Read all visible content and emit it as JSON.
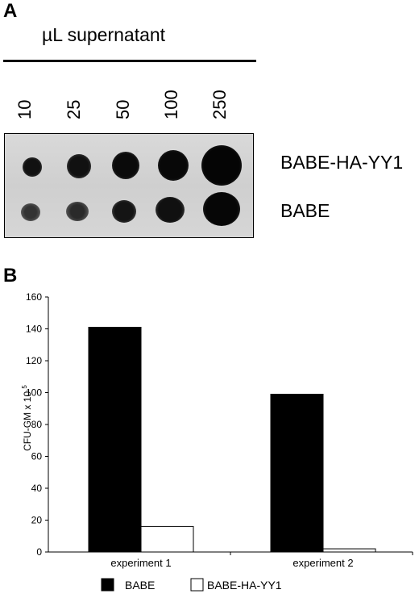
{
  "panelA": {
    "letter": "A",
    "title": "µL supernatant",
    "concentrations": [
      "10",
      "25",
      "50",
      "100",
      "250"
    ],
    "row_labels": [
      "BABE-HA-YY1",
      "BABE"
    ]
  },
  "panelB": {
    "letter": "B",
    "legend": [
      "BABE",
      "BABE-HA-YY1"
    ]
  },
  "chart_data": {
    "type": "bar",
    "categories": [
      "experiment 1",
      "experiment 2"
    ],
    "series": [
      {
        "name": "BABE",
        "values": [
          141,
          99
        ],
        "color": "#000000"
      },
      {
        "name": "BABE-HA-YY1",
        "values": [
          16,
          2
        ],
        "color": "#ffffff"
      }
    ],
    "ylabel": "CFU-GM x 10",
    "ylabel_superscript": "5",
    "ylim": [
      0,
      160
    ],
    "yticks": [
      "0",
      "20",
      "40",
      "60",
      "80",
      "100",
      "120",
      "140",
      "160"
    ],
    "legend_position": "bottom",
    "grid": false
  }
}
